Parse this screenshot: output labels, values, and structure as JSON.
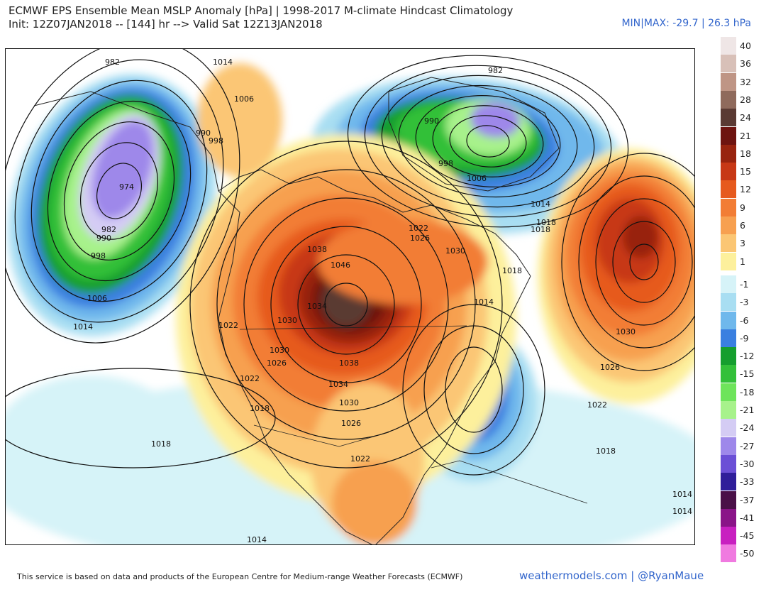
{
  "header": {
    "title_line1": "ECMWF EPS Ensemble Mean MSLP Anomaly [hPa] | 1998-2017 M-climate Hindcast Climatology",
    "title_line2": "Init: 12Z07JAN2018 -- [144] hr --> Valid Sat 12Z13JAN2018",
    "minmax": "MIN|MAX: -29.7 | 26.3 hPa"
  },
  "legend": [
    {
      "label": "40",
      "color": "#efe6e6"
    },
    {
      "label": "36",
      "color": "#d8c0b8"
    },
    {
      "label": "32",
      "color": "#bf9585"
    },
    {
      "label": "28",
      "color": "#8f6a5c"
    },
    {
      "label": "24",
      "color": "#5a3a33"
    },
    {
      "label": "21",
      "color": "#6e1410"
    },
    {
      "label": "18",
      "color": "#98240f"
    },
    {
      "label": "15",
      "color": "#c73816"
    },
    {
      "label": "12",
      "color": "#e65a1e"
    },
    {
      "label": "9",
      "color": "#f27d35"
    },
    {
      "label": "6",
      "color": "#f7a050"
    },
    {
      "label": "3",
      "color": "#fbc674"
    },
    {
      "label": "1",
      "color": "#fdf09c"
    },
    {
      "label": "-1",
      "color": "#d6f3f8"
    },
    {
      "label": "-3",
      "color": "#a8def2"
    },
    {
      "label": "-6",
      "color": "#6fb8ec"
    },
    {
      "label": "-9",
      "color": "#3a7fe0"
    },
    {
      "label": "-12",
      "color": "#159e2e"
    },
    {
      "label": "-15",
      "color": "#33c039"
    },
    {
      "label": "-18",
      "color": "#6ee45b"
    },
    {
      "label": "-21",
      "color": "#a7f28b"
    },
    {
      "label": "-24",
      "color": "#d4ccf4"
    },
    {
      "label": "-27",
      "color": "#9e88ea"
    },
    {
      "label": "-30",
      "color": "#6b4fd6"
    },
    {
      "label": "-33",
      "color": "#2f1e9a"
    },
    {
      "label": "-37",
      "color": "#4a1048"
    },
    {
      "label": "-41",
      "color": "#8a1488"
    },
    {
      "label": "-45",
      "color": "#c820c0"
    },
    {
      "label": "-50",
      "color": "#f07ae0"
    }
  ],
  "contour_labels": [
    "982",
    "1014",
    "1006",
    "990",
    "998",
    "974",
    "982",
    "990",
    "998",
    "1006",
    "1014",
    "1022",
    "1026",
    "1030",
    "1038",
    "1046",
    "1034",
    "1030",
    "1038",
    "1034",
    "1030",
    "1026",
    "1022",
    "1018",
    "1018",
    "1022",
    "1018",
    "1014",
    "998",
    "990",
    "982",
    "1006",
    "1014",
    "1018",
    "1022",
    "1026",
    "1030",
    "1018",
    "1030",
    "1026",
    "1022",
    "1018",
    "1014",
    "1014",
    "1014"
  ],
  "footer": {
    "credit": "This service is based on data and products of the European Centre for Medium-range Weather Forecasts (ECMWF)",
    "brand": "weathermodels.com | @RyanMaue"
  }
}
